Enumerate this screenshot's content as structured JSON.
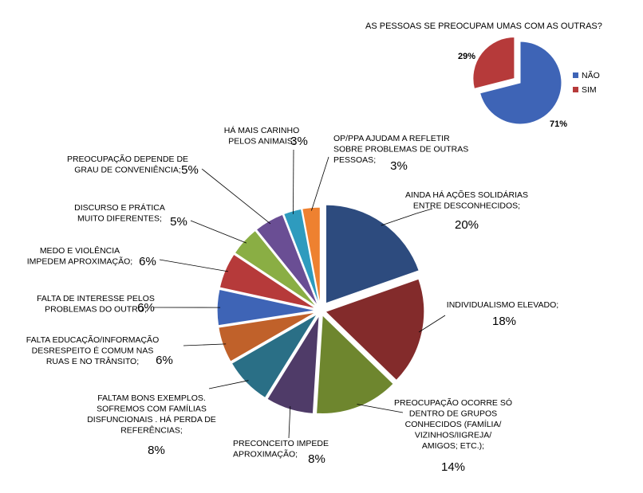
{
  "chart_data": [
    {
      "type": "pie",
      "title": "",
      "exploded": "all slices",
      "slices": [
        {
          "lines": [
            "AINDA HÁ AÇÕES SOLIDÁRIAS",
            "ENTRE DESCONHECIDOS;"
          ],
          "percent_label": "20%",
          "value": 20,
          "color": "#2D4B7E"
        },
        {
          "lines": [
            "INDIVIDUALISMO ELEVADO;"
          ],
          "percent_label": "18%",
          "value": 18,
          "color": "#832B2B"
        },
        {
          "lines": [
            "PREOCUPAÇÃO OCORRE SÓ",
            "DENTRO DE GRUPOS",
            "CONHECIDOS (FAMÍLIA/",
            "VIZINHOS/IIGREJA/",
            "AMIGOS; ETC.);"
          ],
          "percent_label": "14%",
          "value": 14,
          "color": "#6E862E"
        },
        {
          "lines": [
            "PRECONCEITO IMPEDE",
            "APROXIMAÇÃO;"
          ],
          "percent_label": "8%",
          "value": 8,
          "color": "#4F3B68"
        },
        {
          "lines": [
            "FALTAM BONS EXEMPLOS.",
            "SOFREMOS COM FAMÍLIAS",
            "DISFUNCIONAIS . HÁ PERDA DE",
            "REFERÊNCIAS;"
          ],
          "percent_label": "8%",
          "value": 8,
          "color": "#2A6F86"
        },
        {
          "lines": [
            "FALTA  EDUCAÇÃO/INFORMAÇÃO",
            "DESRESPEITO É COMUM NAS",
            "RUAS E NO TRÂNSITO;"
          ],
          "percent_label": "6%",
          "value": 6,
          "color": "#C0612A"
        },
        {
          "lines": [
            "FALTA DE INTERESSE PELOS",
            "PROBLEMAS DO OUTRO;"
          ],
          "percent_label": "6%",
          "value": 6,
          "color": "#3E64B6"
        },
        {
          "lines": [
            "MEDO E VIOLÊNCIA",
            "IMPEDEM APROXIMAÇÃO;"
          ],
          "percent_label": "6%",
          "value": 6,
          "color": "#B63A3A"
        },
        {
          "lines": [
            "DISCURSO E PRÁTICA",
            "MUITO DIFERENTES;"
          ],
          "percent_label": "5%",
          "value": 5,
          "color": "#8AAE44"
        },
        {
          "lines": [
            "PREOCUPAÇÃO DEPENDE DE",
            "GRAU DE CONVENIÊNCIA;"
          ],
          "percent_label": "5%",
          "value": 5,
          "color": "#6A4E94"
        },
        {
          "lines": [
            "HÁ MAIS CARINHO",
            "PELOS ANIMAIS;"
          ],
          "percent_label": "3%",
          "value": 3,
          "color": "#2E9BBE"
        },
        {
          "lines": [
            "OP/PPA AJUDAM A REFLETIR",
            "SOBRE PROBLEMAS DE OUTRAS",
            "PESSOAS;"
          ],
          "percent_label": "3%",
          "value": 3,
          "color": "#EE8130"
        }
      ]
    },
    {
      "type": "pie",
      "title": "AS PESSOAS  SE PREOCUPAM  UMAS COM AS OUTRAS?",
      "legend": "right",
      "slices": [
        {
          "label": "NÃO",
          "value": 71,
          "percent_label": "71%",
          "color": "#3E64B6"
        },
        {
          "label": "SIM",
          "value": 29,
          "percent_label": "29%",
          "color": "#B63A3A"
        }
      ]
    }
  ]
}
